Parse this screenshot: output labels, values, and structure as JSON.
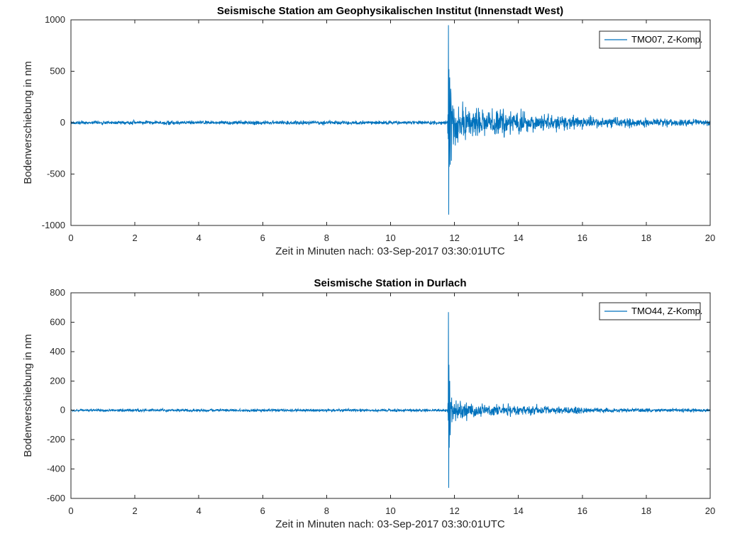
{
  "style": {
    "background": "#ffffff",
    "line_color": "#0072BD",
    "axis_color": "#262626",
    "tick_label_color": "#262626",
    "axis_label_color": "#262626",
    "title_color": "#000000",
    "legend_edge_color": "#262626",
    "legend_background": "#ffffff"
  },
  "chart_data": [
    {
      "type": "line",
      "title": "Seismische Station am Geophysikalischen Institut (Innenstadt West)",
      "xlabel": "Zeit in Minuten nach: 03-Sep-2017 03:30:01UTC",
      "ylabel": "Bodenverschiebung in nm",
      "legend": {
        "label": "TMO07, Z-Komp.",
        "position": "northeast"
      },
      "xlim": [
        0,
        20
      ],
      "ylim": [
        -1000,
        1000
      ],
      "xticks": [
        0,
        2,
        4,
        6,
        8,
        10,
        12,
        14,
        16,
        18,
        20
      ],
      "yticks": [
        -1000,
        -500,
        0,
        500,
        1000
      ],
      "grid": false,
      "series": [
        {
          "name": "TMO07, Z-Komp.",
          "kind": "seismogram",
          "noise_amplitude_nm": 25,
          "event_onset_min": 11.8,
          "peak_nm": 948,
          "trough_nm": -895,
          "amplitude_envelope_min_nm": [
            [
              0,
              25
            ],
            [
              11.78,
              25
            ],
            [
              11.82,
              430
            ],
            [
              11.95,
              400
            ],
            [
              12.2,
              260
            ],
            [
              12.6,
              185
            ],
            [
              13.0,
              165
            ],
            [
              13.35,
              200
            ],
            [
              13.7,
              160
            ],
            [
              14.1,
              135
            ],
            [
              14.6,
              120
            ],
            [
              15.1,
              105
            ],
            [
              15.6,
              92
            ],
            [
              16.2,
              80
            ],
            [
              17.0,
              64
            ],
            [
              18.0,
              54
            ],
            [
              19.0,
              47
            ],
            [
              20.0,
              42
            ]
          ],
          "event_spikes_min_nm": [
            [
              11.796,
              80
            ],
            [
              11.804,
              -160
            ],
            [
              11.812,
              948
            ],
            [
              11.82,
              -895
            ],
            [
              11.828,
              520
            ],
            [
              11.836,
              -430
            ],
            [
              11.852,
              440
            ],
            [
              11.868,
              -410
            ],
            [
              11.884,
              330
            ],
            [
              11.908,
              -370
            ]
          ]
        }
      ]
    },
    {
      "type": "line",
      "title": "Seismische Station in Durlach",
      "xlabel": "Zeit in Minuten nach: 03-Sep-2017 03:30:01UTC",
      "ylabel": "Bodenverschiebung in nm",
      "legend": {
        "label": "TMO44, Z-Komp.",
        "position": "northeast"
      },
      "xlim": [
        0,
        20
      ],
      "ylim": [
        -600,
        800
      ],
      "xticks": [
        0,
        2,
        4,
        6,
        8,
        10,
        12,
        14,
        16,
        18,
        20
      ],
      "yticks": [
        -600,
        -400,
        -200,
        0,
        200,
        400,
        600,
        800
      ],
      "grid": false,
      "series": [
        {
          "name": "TMO44, Z-Komp.",
          "kind": "seismogram",
          "noise_amplitude_nm": 13,
          "event_onset_min": 11.8,
          "peak_nm": 668,
          "trough_nm": -528,
          "amplitude_envelope_min_nm": [
            [
              0,
              13
            ],
            [
              11.78,
              13
            ],
            [
              11.82,
              175
            ],
            [
              11.95,
              145
            ],
            [
              12.2,
              95
            ],
            [
              12.6,
              78
            ],
            [
              13.0,
              64
            ],
            [
              13.5,
              56
            ],
            [
              14.0,
              46
            ],
            [
              14.55,
              52
            ],
            [
              15.0,
              40
            ],
            [
              15.5,
              34
            ],
            [
              16.0,
              29
            ],
            [
              17.0,
              23
            ],
            [
              18.0,
              19
            ],
            [
              19.0,
              16
            ],
            [
              20.0,
              14
            ]
          ],
          "event_spikes_min_nm": [
            [
              11.796,
              50
            ],
            [
              11.804,
              -70
            ],
            [
              11.812,
              668
            ],
            [
              11.82,
              -528
            ],
            [
              11.828,
              310
            ],
            [
              11.836,
              -255
            ],
            [
              11.852,
              200
            ],
            [
              11.868,
              -170
            ]
          ]
        }
      ]
    }
  ]
}
